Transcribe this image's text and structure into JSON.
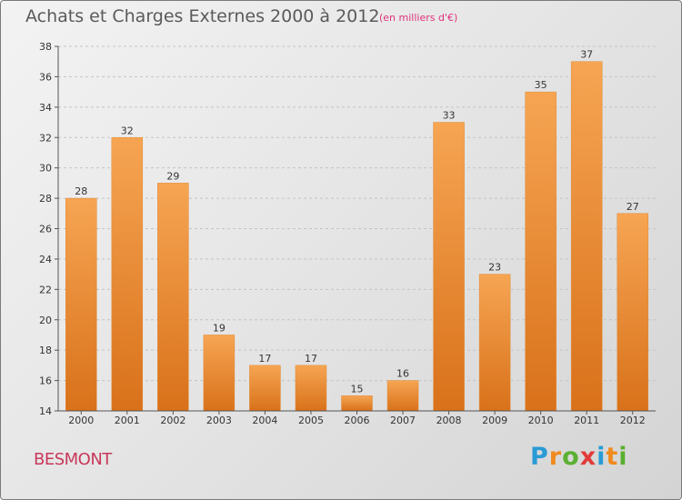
{
  "header": {
    "title": "Achats et Charges Externes 2000 à 2012",
    "subtitle": "(en milliers d'€)"
  },
  "footer": {
    "commune": "BESMONT",
    "logo_text": "Proxiti",
    "logo_letters": [
      {
        "char": "P",
        "color": "#2a9bd6"
      },
      {
        "char": "r",
        "color": "#f08a1c"
      },
      {
        "char": "o",
        "color": "#5bb031"
      },
      {
        "char": "x",
        "color": "#e23a3a"
      },
      {
        "char": "i",
        "color": "#2a9bd6"
      },
      {
        "char": "t",
        "color": "#f08a1c"
      },
      {
        "char": "i",
        "color": "#5bb031"
      }
    ]
  },
  "chart_data": {
    "type": "bar",
    "title": "Achats et Charges Externes 2000 à 2012",
    "subtitle": "(en milliers d'€)",
    "categories": [
      "2000",
      "2001",
      "2002",
      "2003",
      "2004",
      "2005",
      "2006",
      "2007",
      "2008",
      "2009",
      "2010",
      "2011",
      "2012"
    ],
    "values": [
      28,
      32,
      29,
      19,
      17,
      17,
      15,
      16,
      33,
      23,
      35,
      37,
      27
    ],
    "ylim": [
      14,
      38
    ],
    "yticks": [
      14,
      16,
      18,
      20,
      22,
      24,
      26,
      28,
      30,
      32,
      34,
      36,
      38
    ],
    "grid": true,
    "legend": "none",
    "bar_color_top": "#f6a553",
    "bar_color_bottom": "#d9711a"
  }
}
